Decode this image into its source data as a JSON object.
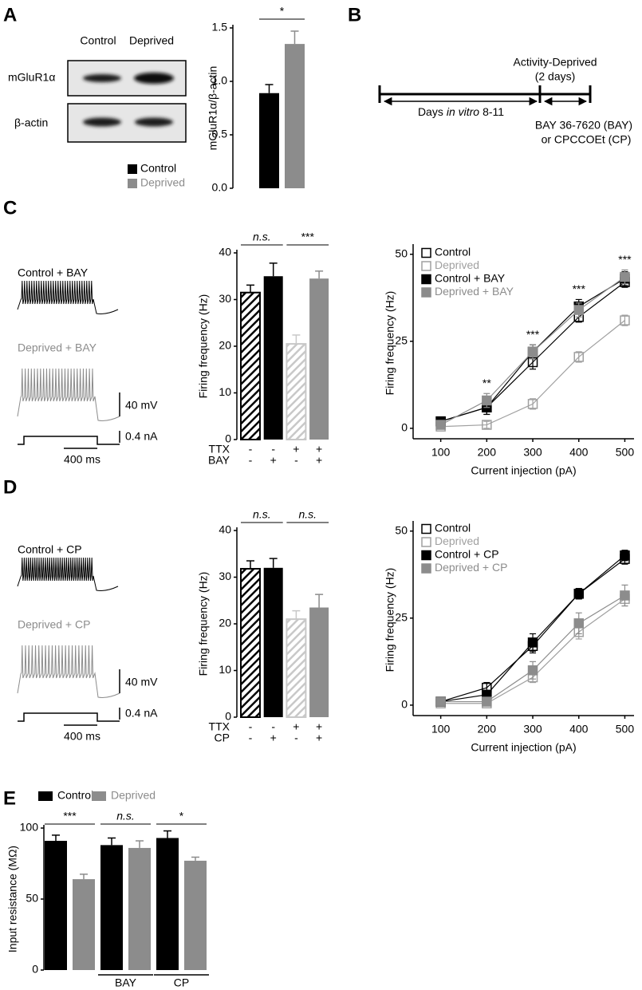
{
  "panels": {
    "A": {
      "letter": "A",
      "lanes": [
        "Control",
        "Deprived"
      ],
      "rows": [
        "mGluR1α",
        "β-actin"
      ]
    },
    "B": {
      "letter": "B",
      "deprived_label": "Activity-Deprived",
      "deprived_duration": "(2 days)",
      "div_label": [
        "Days",
        "in vitro",
        "8-11"
      ],
      "drugs": [
        "BAY 36-7620 (BAY)",
        "or CPCCOEt (CP)"
      ]
    },
    "C": {
      "letter": "C",
      "traces": [
        "Control + BAY",
        "Deprived + BAY"
      ],
      "scale": [
        "40 mV",
        "0.4 nA",
        "400 ms"
      ]
    },
    "D": {
      "letter": "D",
      "traces": [
        "Control + CP",
        "Deprived + CP"
      ],
      "scale": [
        "40 mV",
        "0.4 nA",
        "400 ms"
      ]
    },
    "E": {
      "letter": "E"
    }
  },
  "chart_data": [
    {
      "type": "bar",
      "ylabel": "mGluR1α/β-actin",
      "ylim": [
        0,
        1.5
      ],
      "yticks": [
        {
          "value": 0,
          "label": "0.0"
        },
        0.5,
        {
          "value": 1,
          "label": "1.0"
        },
        1.5
      ],
      "series": [
        {
          "name": "Control",
          "color": "#000000",
          "values": [
            0.89
          ],
          "errors": [
            0.08
          ]
        },
        {
          "name": "Deprived",
          "color": "#8c8c8c",
          "values": [
            1.35
          ],
          "errors": [
            0.12
          ]
        }
      ],
      "annotations": [
        "*"
      ]
    },
    {
      "type": "bar",
      "ylabel": "Firing frequency (Hz)",
      "ylim": [
        0,
        40
      ],
      "yticks": [
        0,
        10,
        20,
        30,
        40
      ],
      "values": [
        31.5,
        35,
        20.5,
        34.5
      ],
      "errors": [
        1.6,
        2.8,
        1.9,
        1.6
      ],
      "colors": [
        "#000000",
        "#000000",
        "#c8c8c8",
        "#8c8c8c"
      ],
      "hatch": [
        true,
        false,
        true,
        false
      ],
      "rows": [
        {
          "name": "TTX",
          "values": [
            "-",
            "-",
            "+",
            "+"
          ]
        },
        {
          "name": "BAY",
          "values": [
            "-",
            "+",
            "-",
            "+"
          ]
        }
      ],
      "annotations": [
        "n.s.",
        "***"
      ]
    },
    {
      "type": "line",
      "xlabel": "Current injection (pA)",
      "ylabel": "Firing frequency (Hz)",
      "x": [
        100,
        200,
        300,
        400,
        500
      ],
      "xlim": [
        40,
        520
      ],
      "xticks": [
        100,
        200,
        300,
        400,
        500
      ],
      "ylim": [
        -3,
        52
      ],
      "yticks": [
        0,
        25,
        50
      ],
      "series": [
        {
          "name": "Control",
          "color": "#000000",
          "marker": "open",
          "values": [
            2,
            6,
            19,
            32,
            42
          ],
          "errors": [
            1,
            2,
            2,
            1.5,
            1.5
          ]
        },
        {
          "name": "Deprived",
          "color": "#a0a0a0",
          "marker": "open",
          "values": [
            0.5,
            1,
            7,
            20.5,
            31
          ],
          "errors": [
            0.5,
            1,
            1.5,
            1.5,
            1.5
          ]
        },
        {
          "name": "Control + BAY",
          "color": "#000000",
          "marker": "filled",
          "values": [
            2,
            6,
            22,
            35,
            43
          ],
          "errors": [
            1,
            2,
            2,
            2,
            2
          ]
        },
        {
          "name": "Deprived + BAY",
          "color": "#8c8c8c",
          "marker": "filled",
          "values": [
            1,
            8,
            22,
            34,
            43.5
          ],
          "errors": [
            1,
            2,
            2,
            2,
            2
          ]
        }
      ],
      "annotations": [
        null,
        "**",
        "***",
        "***",
        "***"
      ]
    },
    {
      "type": "bar",
      "ylabel": "Firing frequency (Hz)",
      "ylim": [
        0,
        40
      ],
      "yticks": [
        0,
        10,
        20,
        30,
        40
      ],
      "values": [
        31.8,
        32,
        21,
        23.5
      ],
      "errors": [
        1.7,
        2,
        1.8,
        2.8
      ],
      "colors": [
        "#000000",
        "#000000",
        "#c8c8c8",
        "#8c8c8c"
      ],
      "hatch": [
        true,
        false,
        true,
        false
      ],
      "rows": [
        {
          "name": "TTX",
          "values": [
            "-",
            "-",
            "+",
            "+"
          ]
        },
        {
          "name": "CP",
          "values": [
            "-",
            "+",
            "-",
            "+"
          ]
        }
      ],
      "annotations": [
        "n.s.",
        "n.s."
      ]
    },
    {
      "type": "line",
      "xlabel": "Current injection (pA)",
      "ylabel": "Firing frequency (Hz)",
      "x": [
        100,
        200,
        300,
        400,
        500
      ],
      "xlim": [
        40,
        520
      ],
      "xticks": [
        100,
        200,
        300,
        400,
        500
      ],
      "ylim": [
        -3,
        52
      ],
      "yticks": [
        0,
        25,
        50
      ],
      "series": [
        {
          "name": "Control",
          "color": "#000000",
          "marker": "open",
          "values": [
            1,
            5,
            17,
            32,
            42
          ],
          "errors": [
            0.5,
            1.5,
            2,
            1.5,
            1.5
          ]
        },
        {
          "name": "Deprived",
          "color": "#a0a0a0",
          "marker": "open",
          "values": [
            0.5,
            0.5,
            8,
            21,
            30.5
          ],
          "errors": [
            0.5,
            0.5,
            1.5,
            2,
            2
          ]
        },
        {
          "name": "Control + CP",
          "color": "#000000",
          "marker": "filled",
          "values": [
            1,
            3,
            18,
            32,
            43
          ],
          "errors": [
            0.5,
            1,
            2.5,
            1.5,
            1.5
          ]
        },
        {
          "name": "Deprived + CP",
          "color": "#8c8c8c",
          "marker": "filled",
          "values": [
            1,
            1,
            10,
            23.5,
            31.5
          ],
          "errors": [
            0.5,
            0.5,
            2.5,
            3,
            3
          ]
        }
      ]
    },
    {
      "type": "bar",
      "ylabel": "Input resistance (MΩ)",
      "ylim": [
        0,
        100
      ],
      "yticks": [
        0,
        50,
        100
      ],
      "categories": [
        null,
        "BAY",
        "CP"
      ],
      "series": [
        {
          "name": "Control",
          "color": "#000000",
          "values": [
            91,
            88,
            93
          ],
          "errors": [
            4,
            5,
            5
          ]
        },
        {
          "name": "Deprived",
          "color": "#8c8c8c",
          "values": [
            64,
            86,
            77
          ],
          "errors": [
            3.5,
            5,
            2.5
          ]
        }
      ],
      "annotations": [
        "***",
        "n.s.",
        "*"
      ]
    }
  ]
}
